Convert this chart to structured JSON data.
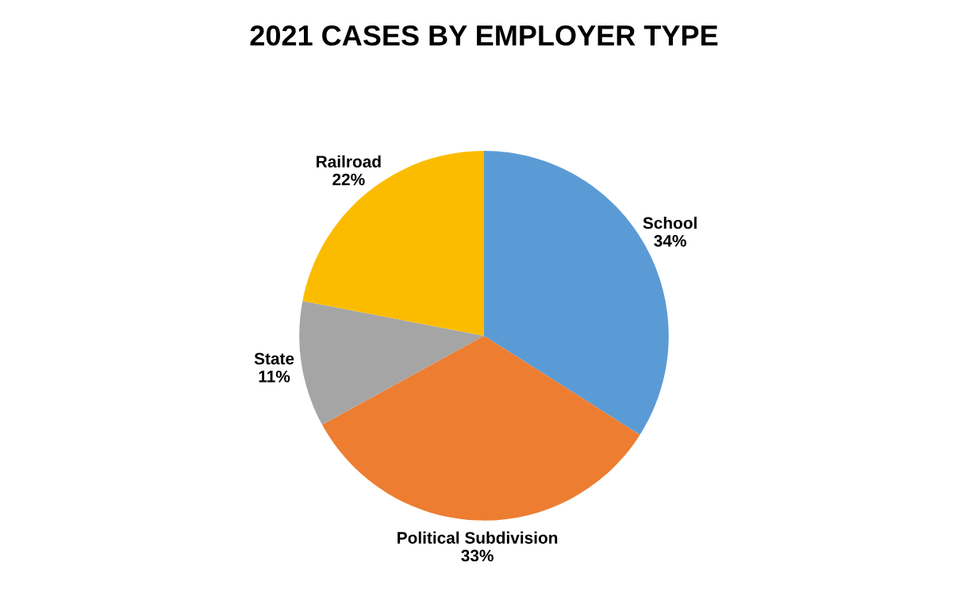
{
  "chart_data": {
    "type": "pie",
    "title": "2021 CASES BY EMPLOYER TYPE",
    "categories": [
      "School",
      "Political Subdivision",
      "State",
      "Railroad"
    ],
    "values": [
      34,
      33,
      11,
      22
    ],
    "colors": [
      "#5b9bd5",
      "#ed7d31",
      "#a5a5a5",
      "#fbbc00"
    ],
    "value_labels": [
      "34%",
      "33%",
      "11%",
      "22%"
    ]
  }
}
